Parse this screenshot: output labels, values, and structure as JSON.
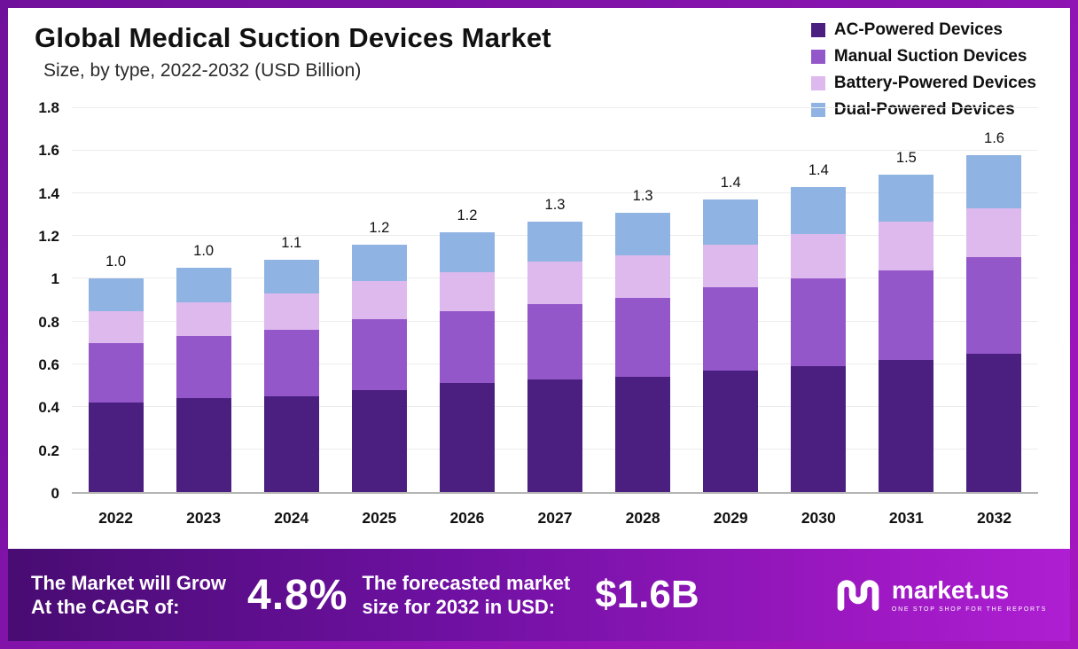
{
  "chart_data": {
    "type": "bar",
    "stacked": true,
    "title": "Global Medical Suction Devices Market",
    "subtitle": "Size, by type, 2022-2032 (USD Billion)",
    "xlabel": "",
    "ylabel": "USD Billion",
    "ylim": [
      0,
      1.8
    ],
    "grid": true,
    "legend_position": "top-right",
    "categories": [
      "2022",
      "2023",
      "2024",
      "2025",
      "2026",
      "2027",
      "2028",
      "2029",
      "2030",
      "2031",
      "2032"
    ],
    "series": [
      {
        "name": "AC-Powered Devices",
        "color": "#4b1f80",
        "values": [
          0.42,
          0.44,
          0.45,
          0.48,
          0.51,
          0.53,
          0.54,
          0.57,
          0.59,
          0.62,
          0.65
        ]
      },
      {
        "name": "Manual Suction Devices",
        "color": "#9457c9",
        "values": [
          0.28,
          0.29,
          0.31,
          0.33,
          0.34,
          0.35,
          0.37,
          0.39,
          0.41,
          0.42,
          0.45
        ]
      },
      {
        "name": "Battery-Powered Devices",
        "color": "#ddb9ee",
        "values": [
          0.15,
          0.16,
          0.17,
          0.18,
          0.18,
          0.2,
          0.2,
          0.2,
          0.21,
          0.23,
          0.23
        ]
      },
      {
        "name": "Dual-Powered Devices",
        "color": "#8fb3e2",
        "values": [
          0.15,
          0.16,
          0.16,
          0.17,
          0.19,
          0.19,
          0.2,
          0.21,
          0.22,
          0.22,
          0.25
        ]
      }
    ],
    "totals": [
      "1.0",
      "1.0",
      "1.1",
      "1.2",
      "1.2",
      "1.3",
      "1.3",
      "1.4",
      "1.4",
      "1.5",
      "1.6"
    ],
    "yticks": [
      {
        "value": 1.8,
        "label": "1.8"
      },
      {
        "value": 1.6,
        "label": "1.6"
      },
      {
        "value": 1.4,
        "label": "1.4"
      },
      {
        "value": 1.2,
        "label": "1.2"
      },
      {
        "value": 1.0,
        "label": "1"
      },
      {
        "value": 0.8,
        "label": "0.8"
      },
      {
        "value": 0.6,
        "label": "0.6"
      },
      {
        "value": 0.4,
        "label": "0.4"
      },
      {
        "value": 0.2,
        "label": "0.2"
      },
      {
        "value": 0.0,
        "label": "0"
      }
    ]
  },
  "banner": {
    "cagr_line1": "The Market will Grow",
    "cagr_line2": "At the CAGR of:",
    "cagr_value": "4.8%",
    "forecast_line1": "The forecasted market",
    "forecast_line2": "size for 2032 in USD:",
    "forecast_value": "$1.6B",
    "logo_text": "market.us",
    "logo_tagline": "ONE STOP SHOP FOR THE REPORTS"
  },
  "colors": {
    "frame": "#8a14b0",
    "banner_gradient_left": "#480c72",
    "banner_gradient_right": "#ae1ed2",
    "text_dark": "#111111",
    "text_white": "#ffffff"
  }
}
